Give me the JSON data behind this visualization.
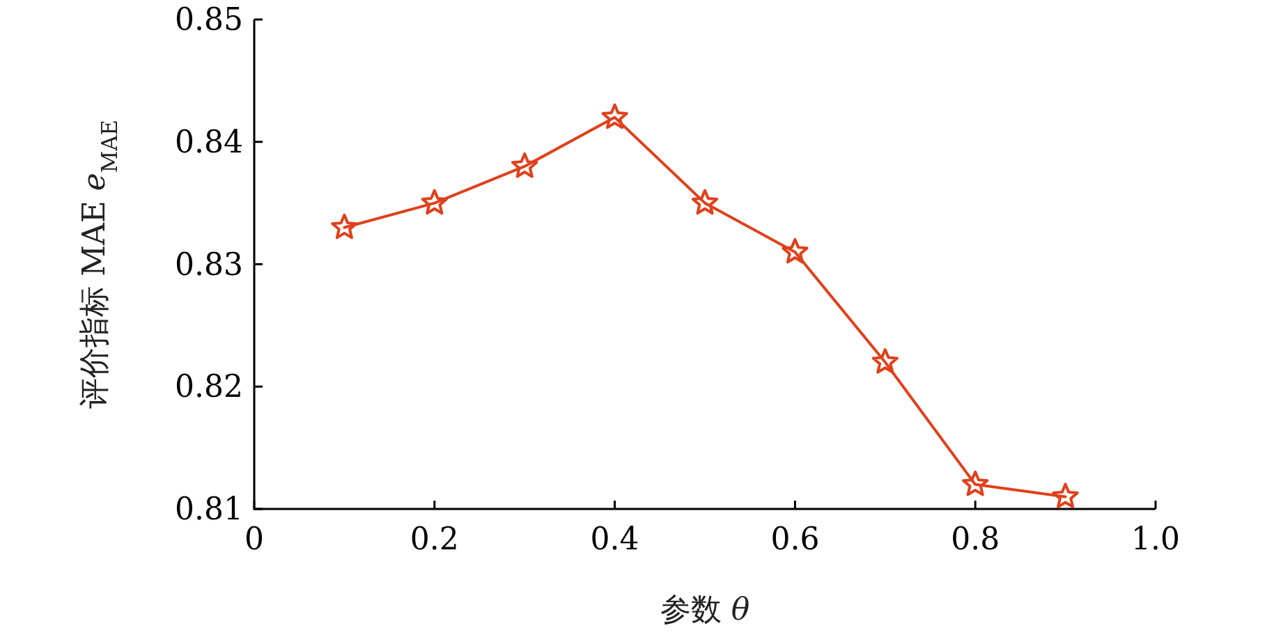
{
  "chart_data": {
    "type": "line",
    "xlabel": "参数 *θ*",
    "ylabel": "评价指标 MAE *e*$_{MAE}$",
    "x": [
      0.1,
      0.2,
      0.3,
      0.4,
      0.5,
      0.6,
      0.7,
      0.8,
      0.9
    ],
    "series": [
      {
        "color": "#e0401a",
        "values": [
          0.833,
          0.835,
          0.838,
          0.842,
          0.835,
          0.831,
          0.822,
          0.812,
          0.811
        ]
      }
    ],
    "xlim": [
      0,
      1
    ],
    "ylim": [
      0.81,
      0.85
    ],
    "xticks": [
      0,
      0.2,
      0.4,
      0.6,
      0.8,
      {
        "value": 1,
        "label": "1.0"
      }
    ],
    "yticks": [
      0.81,
      0.82,
      0.83,
      0.84,
      0.85
    ],
    "marker": "star",
    "line_style": "solid"
  }
}
